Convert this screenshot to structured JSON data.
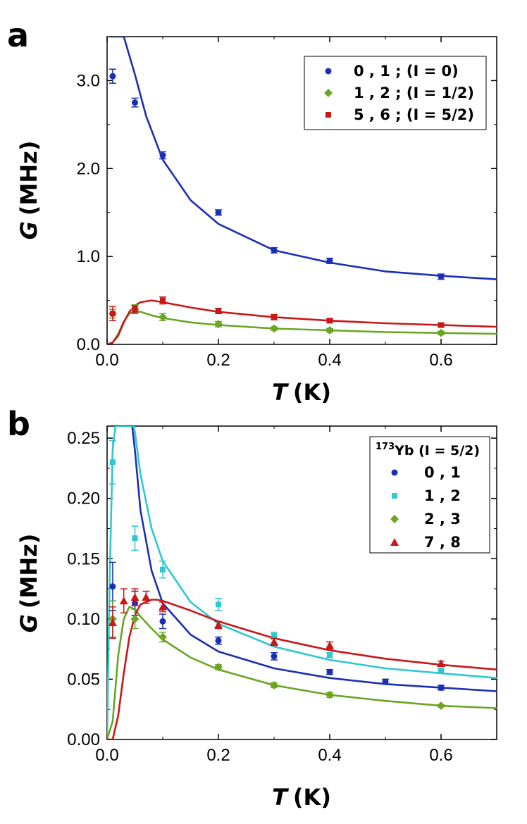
{
  "chart_data": [
    {
      "panel_label": "a",
      "type": "scatter",
      "xlabel_var": "T",
      "xlabel_unit": "(K)",
      "ylabel_var": "G",
      "ylabel_unit": "(MHz)",
      "xlim": [
        0,
        0.7
      ],
      "ylim": [
        0,
        3.5
      ],
      "xticks": [
        0.0,
        0.2,
        0.4,
        0.6
      ],
      "xtick_labels": [
        "0.0",
        "0.2",
        "0.4",
        "0.6"
      ],
      "yticks": [
        0.0,
        1.0,
        2.0,
        3.0
      ],
      "ytick_labels": [
        "0.0",
        "1.0",
        "2.0",
        "3.0"
      ],
      "legend_title": "",
      "series": [
        {
          "name": "0 , 1 ; (I = 0)",
          "color": "#1a2fb4",
          "marker": "circle",
          "x": [
            0.01,
            0.05,
            0.1,
            0.2,
            0.3,
            0.4,
            0.6
          ],
          "y": [
            3.05,
            2.75,
            2.15,
            1.5,
            1.07,
            0.95,
            0.77
          ],
          "err": [
            0.08,
            0.05,
            0.04,
            0.03,
            0.03,
            0.03,
            0.03
          ],
          "fit": {
            "x": [
              0.005,
              0.008,
              0.012,
              0.02,
              0.03,
              0.05,
              0.07,
              0.1,
              0.15,
              0.2,
              0.3,
              0.4,
              0.5,
              0.6,
              0.7
            ],
            "y": [
              3.5,
              3.5,
              3.5,
              3.5,
              3.5,
              3.07,
              2.6,
              2.1,
              1.64,
              1.37,
              1.07,
              0.93,
              0.83,
              0.78,
              0.74
            ]
          }
        },
        {
          "name": "1 , 2 ; (I = 1/2)",
          "color": "#6aa624",
          "marker": "diamond",
          "x": [
            0.01,
            0.05,
            0.1,
            0.2,
            0.3,
            0.4,
            0.6
          ],
          "y": [
            0.35,
            0.4,
            0.31,
            0.23,
            0.18,
            0.16,
            0.13
          ],
          "err": [
            0.05,
            0.05,
            0.04,
            0.03,
            0.02,
            0.02,
            0.02
          ],
          "fit": {
            "x": [
              0.0,
              0.01,
              0.02,
              0.03,
              0.04,
              0.05,
              0.06,
              0.08,
              0.1,
              0.15,
              0.2,
              0.3,
              0.4,
              0.5,
              0.6,
              0.7
            ],
            "y": [
              0.0,
              0.02,
              0.12,
              0.26,
              0.35,
              0.38,
              0.37,
              0.33,
              0.3,
              0.25,
              0.22,
              0.18,
              0.16,
              0.14,
              0.13,
              0.12
            ]
          }
        },
        {
          "name": "5 , 6 ; (I = 5/2)",
          "color": "#c81818",
          "marker": "square",
          "x": [
            0.01,
            0.05,
            0.1,
            0.2,
            0.3,
            0.4,
            0.6
          ],
          "y": [
            0.35,
            0.4,
            0.5,
            0.38,
            0.31,
            0.27,
            0.22
          ],
          "err": [
            0.08,
            0.04,
            0.04,
            0.03,
            0.03,
            0.02,
            0.02
          ],
          "fit": {
            "x": [
              0.0,
              0.01,
              0.02,
              0.03,
              0.04,
              0.05,
              0.06,
              0.08,
              0.1,
              0.15,
              0.2,
              0.3,
              0.4,
              0.5,
              0.6,
              0.7
            ],
            "y": [
              0.0,
              0.02,
              0.1,
              0.25,
              0.37,
              0.44,
              0.48,
              0.5,
              0.48,
              0.42,
              0.37,
              0.31,
              0.27,
              0.24,
              0.22,
              0.2
            ]
          }
        }
      ]
    },
    {
      "panel_label": "b",
      "type": "scatter",
      "xlabel_var": "T",
      "xlabel_unit": "(K)",
      "ylabel_var": "G",
      "ylabel_unit": "(MHz)",
      "xlim": [
        0,
        0.7
      ],
      "ylim": [
        0,
        0.26
      ],
      "xticks": [
        0.0,
        0.2,
        0.4,
        0.6
      ],
      "xtick_labels": [
        "0.0",
        "0.2",
        "0.4",
        "0.6"
      ],
      "yticks": [
        0.0,
        0.05,
        0.1,
        0.15,
        0.2,
        0.25
      ],
      "ytick_labels": [
        "0.00",
        "0.05",
        "0.10",
        "0.15",
        "0.20",
        "0.25"
      ],
      "legend_title_sup": "173",
      "legend_title": "Yb (I = 5/2)",
      "series": [
        {
          "name": "0 , 1",
          "color": "#1a2fb4",
          "marker": "circle",
          "x": [
            0.01,
            0.05,
            0.1,
            0.2,
            0.3,
            0.4,
            0.5,
            0.6
          ],
          "y": [
            0.127,
            0.113,
            0.098,
            0.082,
            0.069,
            0.056,
            0.048,
            0.043
          ],
          "err": [
            0.02,
            0.01,
            0.006,
            0.003,
            0.003,
            0.002,
            0.002,
            0.002
          ],
          "fit": {
            "x": [
              0.045,
              0.05,
              0.06,
              0.08,
              0.1,
              0.15,
              0.2,
              0.3,
              0.4,
              0.5,
              0.6,
              0.7
            ],
            "y": [
              0.26,
              0.24,
              0.19,
              0.14,
              0.113,
              0.087,
              0.073,
              0.059,
              0.051,
              0.046,
              0.043,
              0.04
            ]
          }
        },
        {
          "name": "1 , 2",
          "color": "#2ec8cf",
          "marker": "square",
          "x": [
            0.01,
            0.05,
            0.1,
            0.2,
            0.3,
            0.4,
            0.6
          ],
          "y": [
            0.23,
            0.167,
            0.141,
            0.112,
            0.086,
            0.07,
            0.057
          ],
          "err": [
            0.018,
            0.01,
            0.007,
            0.005,
            0.003,
            0.002,
            0.002
          ],
          "fit": {
            "x": [
              0.0,
              0.002,
              0.005,
              0.008,
              0.01,
              0.015,
              0.048,
              0.05,
              0.06,
              0.08,
              0.1,
              0.15,
              0.2,
              0.3,
              0.4,
              0.5,
              0.6,
              0.7
            ],
            "y": [
              0.0,
              0.06,
              0.14,
              0.2,
              0.24,
              0.26,
              0.26,
              0.255,
              0.22,
              0.175,
              0.148,
              0.114,
              0.096,
              0.077,
              0.066,
              0.059,
              0.055,
              0.051
            ]
          }
        },
        {
          "name": "2 , 3",
          "color": "#6aa624",
          "marker": "diamond",
          "x": [
            0.01,
            0.05,
            0.1,
            0.2,
            0.3,
            0.4,
            0.6
          ],
          "y": [
            0.1,
            0.1,
            0.085,
            0.06,
            0.045,
            0.037,
            0.028
          ],
          "err": [
            0.015,
            0.008,
            0.004,
            0.002,
            0.002,
            0.002,
            0.001
          ],
          "fit": {
            "x": [
              0.0,
              0.01,
              0.02,
              0.03,
              0.04,
              0.05,
              0.06,
              0.08,
              0.1,
              0.15,
              0.2,
              0.3,
              0.4,
              0.5,
              0.6,
              0.7
            ],
            "y": [
              0.0,
              0.015,
              0.07,
              0.1,
              0.11,
              0.108,
              0.102,
              0.092,
              0.083,
              0.068,
              0.058,
              0.045,
              0.037,
              0.032,
              0.028,
              0.026
            ]
          }
        },
        {
          "name": "7 , 8",
          "color": "#c81818",
          "marker": "triangle",
          "x": [
            0.01,
            0.03,
            0.05,
            0.07,
            0.1,
            0.2,
            0.3,
            0.4,
            0.6
          ],
          "y": [
            0.097,
            0.115,
            0.118,
            0.118,
            0.11,
            0.095,
            0.081,
            0.078,
            0.063
          ],
          "err": [
            0.013,
            0.01,
            0.007,
            0.005,
            0.004,
            0.003,
            0.003,
            0.003,
            0.002
          ],
          "fit": {
            "x": [
              0.0,
              0.01,
              0.02,
              0.03,
              0.04,
              0.05,
              0.06,
              0.08,
              0.09,
              0.1,
              0.15,
              0.2,
              0.3,
              0.4,
              0.5,
              0.6,
              0.7
            ],
            "y": [
              0.0,
              0.0,
              0.02,
              0.055,
              0.085,
              0.103,
              0.112,
              0.116,
              0.116,
              0.115,
              0.107,
              0.098,
              0.084,
              0.074,
              0.067,
              0.062,
              0.058
            ]
          }
        }
      ]
    }
  ]
}
